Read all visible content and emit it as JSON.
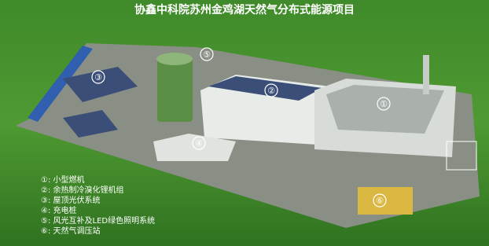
{
  "title": "协鑫中科院苏州金鸡湖天然气分布式能源项目",
  "legend": [
    "①: 小型燃机",
    "②: 余热制冷溴化锂机组",
    "③: 屋顶光伏系统",
    "④: 充电桩",
    "⑤: 风光互补及LED绿色照明系统",
    "⑥: 天然气调压站"
  ],
  "markers": [
    "①",
    "②",
    "③",
    "④",
    "⑤",
    "⑥"
  ]
}
